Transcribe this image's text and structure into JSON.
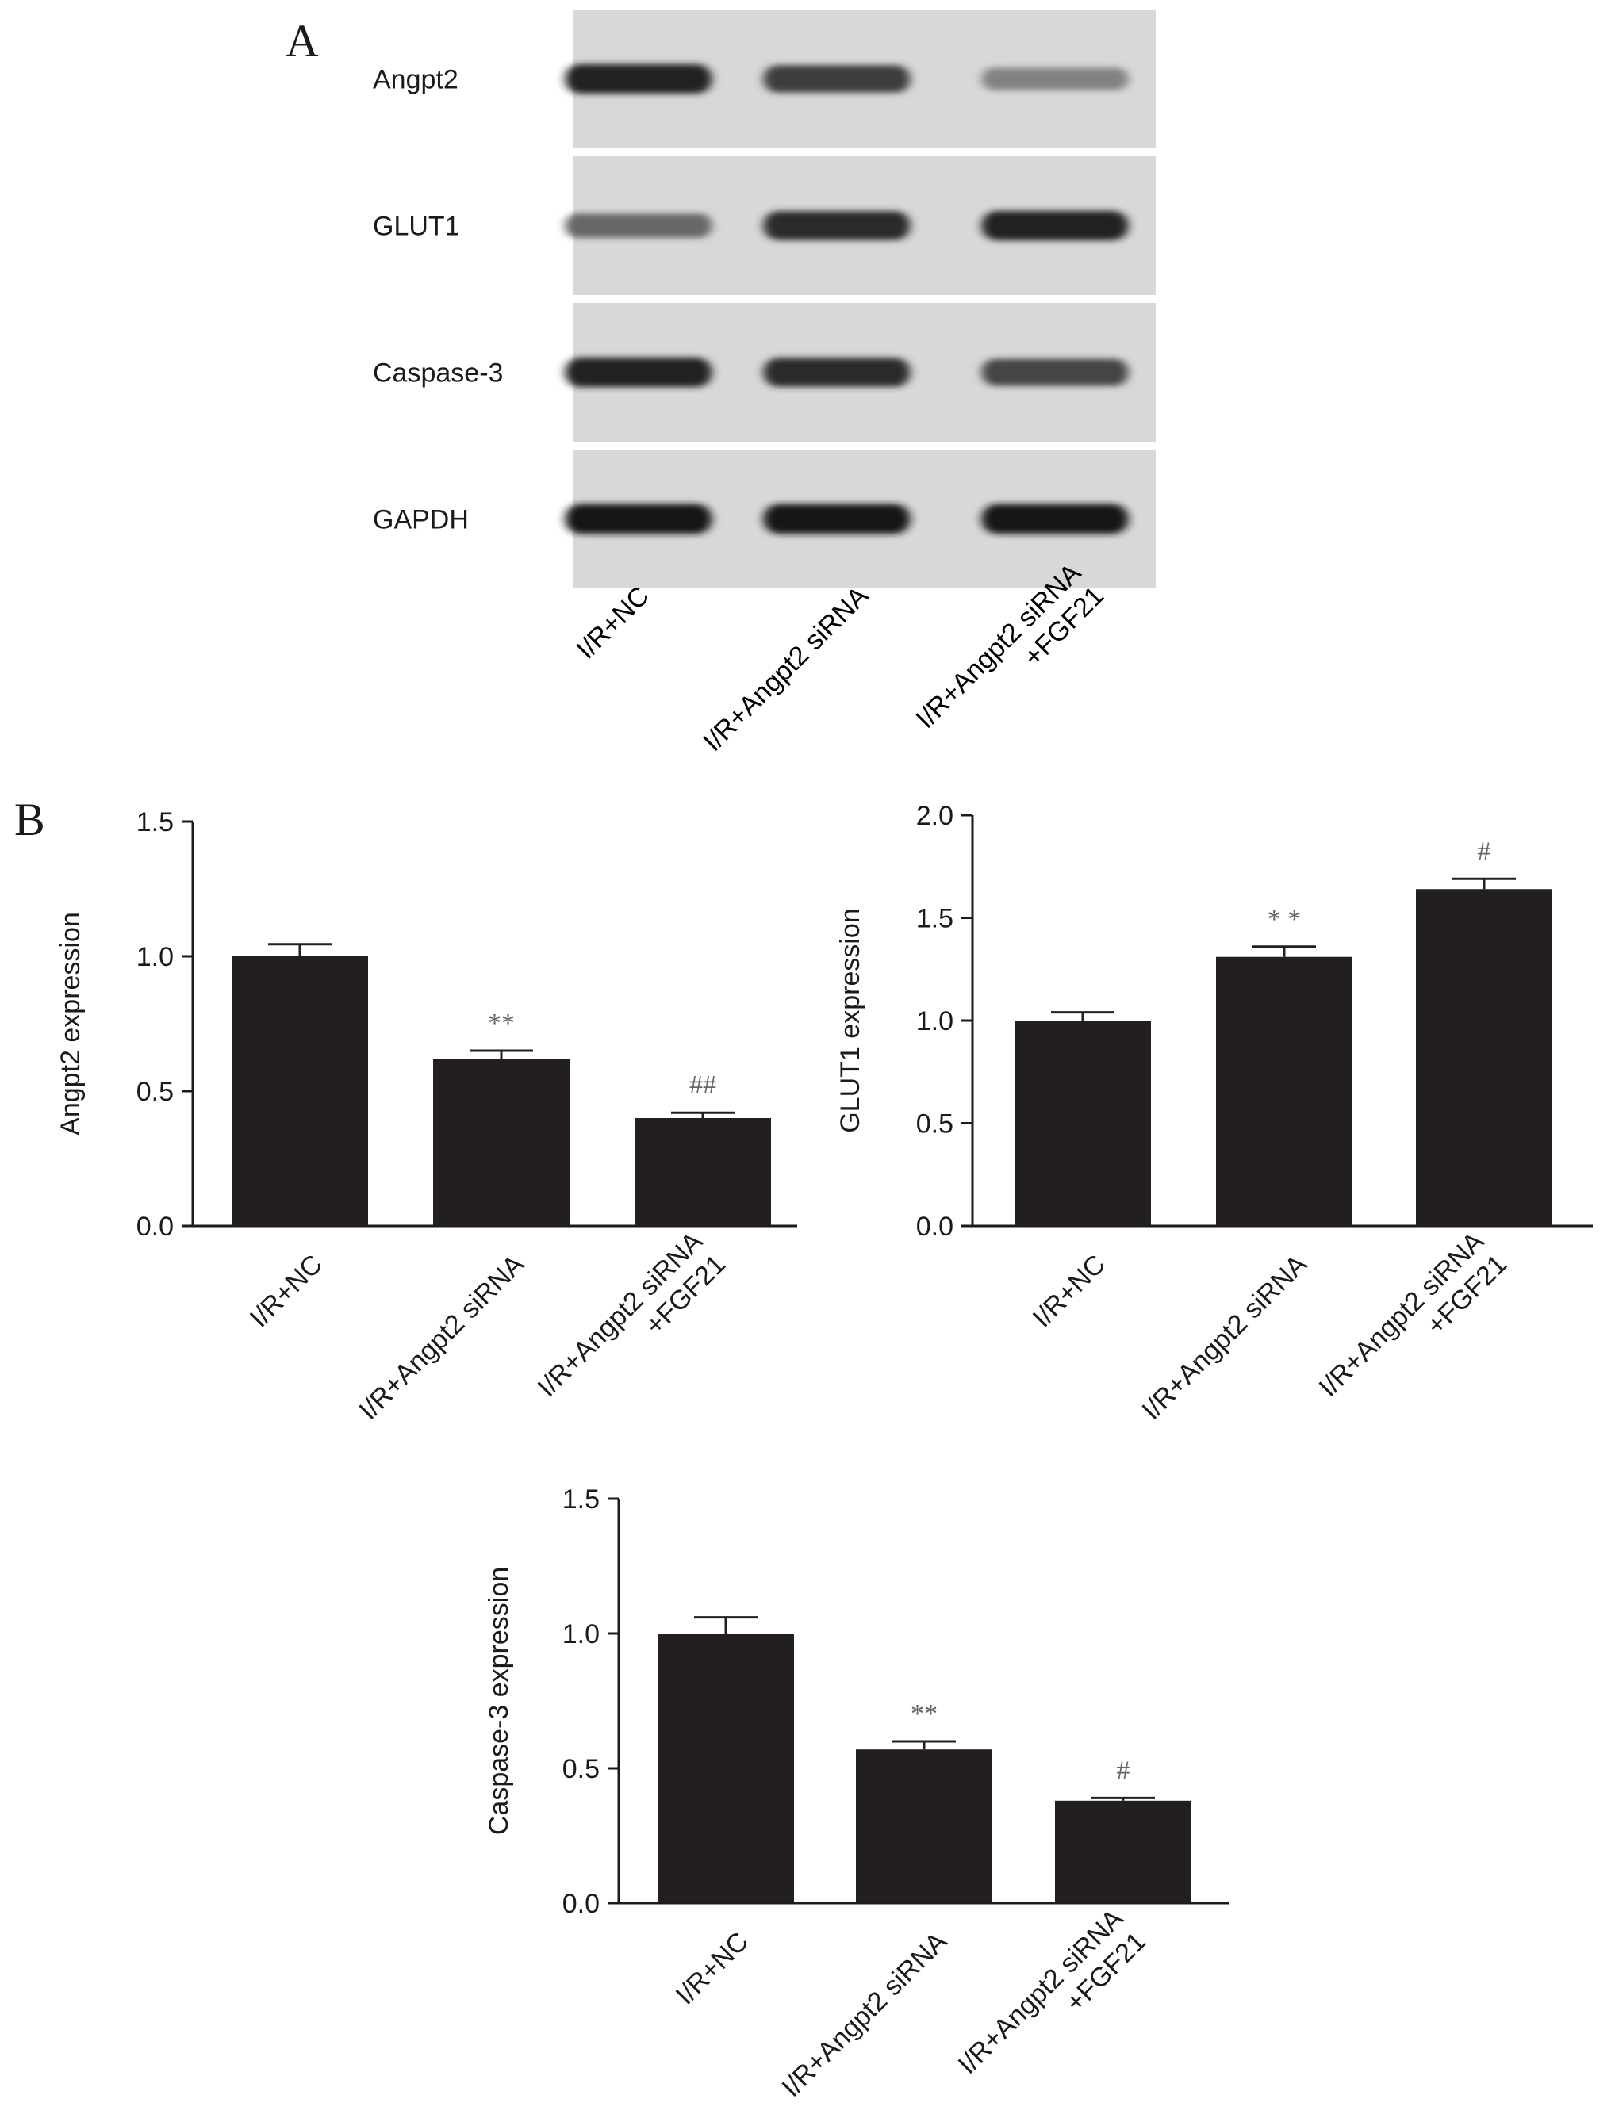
{
  "panels": {
    "a": "A",
    "b": "B"
  },
  "blot": {
    "proteins": [
      "Angpt2",
      "GLUT1",
      "Caspase-3",
      "GAPDH"
    ],
    "lanes": [
      "I/R+NC",
      "I/R+Angpt2 siRNA",
      "I/R+Angpt2 siRNA\n+FGF21"
    ],
    "band_intensity": [
      [
        0.95,
        0.8,
        0.4
      ],
      [
        0.55,
        0.9,
        0.95
      ],
      [
        0.95,
        0.9,
        0.75
      ],
      [
        1.0,
        1.0,
        1.0
      ]
    ]
  },
  "chart_data": [
    {
      "type": "bar",
      "categories": [
        "I/R+NC",
        "I/R+Angpt2 siRNA",
        "I/R+Angpt2 siRNA\n+FGF21"
      ],
      "values": [
        1.0,
        0.62,
        0.4
      ],
      "errors": [
        0.045,
        0.03,
        0.02
      ],
      "annotations": [
        "",
        "**",
        "##"
      ],
      "title": "",
      "xlabel": "",
      "ylabel": "Angpt2 expression",
      "ylim": [
        0,
        1.5
      ],
      "yticks": [
        "0.0",
        "0.5",
        "1.0",
        "1.5"
      ],
      "bar_color": "#231f20"
    },
    {
      "type": "bar",
      "categories": [
        "I/R+NC",
        "I/R+Angpt2 siRNA",
        "I/R+Angpt2 siRNA\n+FGF21"
      ],
      "values": [
        1.0,
        1.31,
        1.64
      ],
      "errors": [
        0.04,
        0.05,
        0.05
      ],
      "annotations": [
        "",
        "* *",
        "#"
      ],
      "title": "",
      "xlabel": "",
      "ylabel": "GLUT1 expression",
      "ylim": [
        0,
        2.0
      ],
      "yticks": [
        "0.0",
        "0.5",
        "1.0",
        "1.5",
        "2.0"
      ],
      "bar_color": "#231f20"
    },
    {
      "type": "bar",
      "categories": [
        "I/R+NC",
        "I/R+Angpt2 siRNA",
        "I/R+Angpt2 siRNA\n+FGF21"
      ],
      "values": [
        1.0,
        0.57,
        0.38
      ],
      "errors": [
        0.06,
        0.03,
        0.01
      ],
      "annotations": [
        "",
        "**",
        "#"
      ],
      "title": "",
      "xlabel": "",
      "ylabel": "Caspase-3 expression",
      "ylim": [
        0,
        1.5
      ],
      "yticks": [
        "0.0",
        "0.5",
        "1.0",
        "1.5"
      ],
      "bar_color": "#231f20"
    }
  ]
}
